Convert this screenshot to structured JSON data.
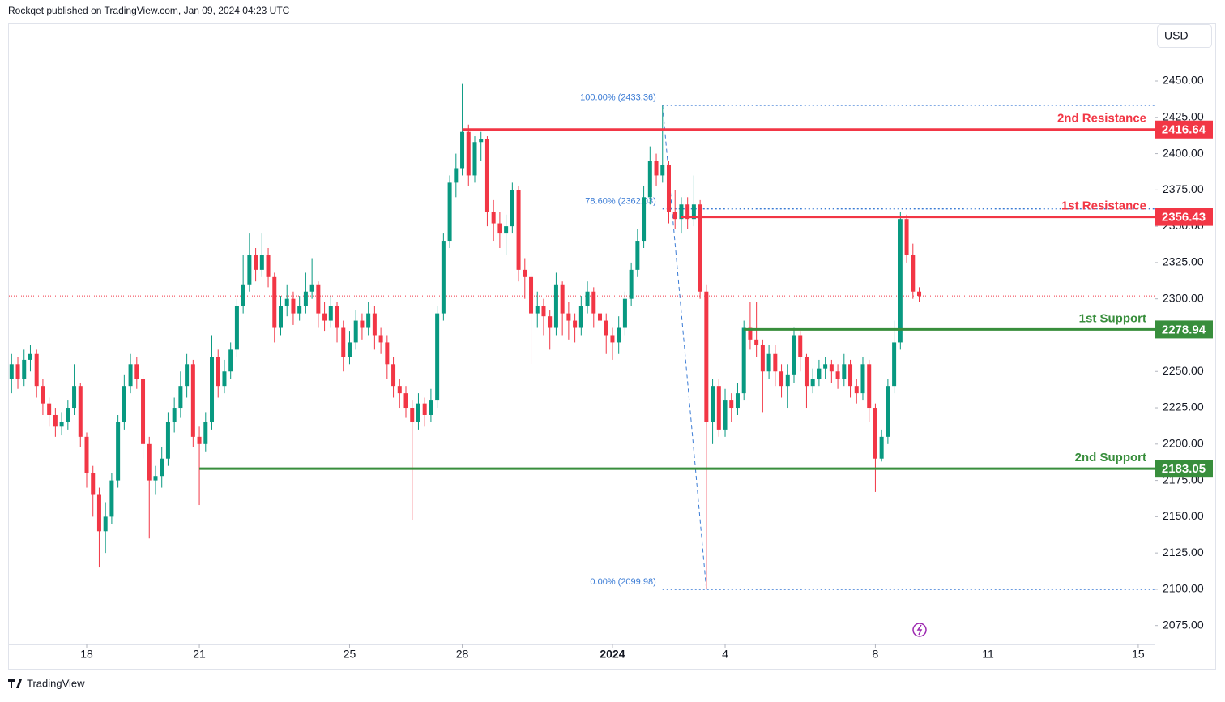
{
  "header": {
    "published": "Rockqet published on TradingView.com, Jan 09, 2024 04:23 UTC",
    "currency": "USD",
    "brand": "TradingView"
  },
  "chart_data": {
    "type": "candlestick",
    "up_color": "#089981",
    "down_color": "#f23645",
    "xlim": [
      -1.85,
      182.6
    ],
    "xticks": [
      {
        "value": 12,
        "label": "18"
      },
      {
        "value": 30,
        "label": "21"
      },
      {
        "value": 54,
        "label": "25"
      },
      {
        "value": 72,
        "label": "28"
      },
      {
        "value": 96,
        "label": "2024"
      },
      {
        "value": 114,
        "label": "4"
      },
      {
        "value": 138,
        "label": "8"
      },
      {
        "value": 156,
        "label": "11"
      },
      {
        "value": 180,
        "label": "15"
      }
    ],
    "ylim": [
      2062,
      2490.2
    ],
    "yticks": [
      {
        "value": 2075,
        "label": "2075.00"
      },
      {
        "value": 2100,
        "label": "2100.00"
      },
      {
        "value": 2125,
        "label": "2125.00"
      },
      {
        "value": 2150,
        "label": "2150.00"
      },
      {
        "value": 2175,
        "label": "2175.00"
      },
      {
        "value": 2200,
        "label": "2200.00"
      },
      {
        "value": 2225,
        "label": "2225.00"
      },
      {
        "value": 2250,
        "label": "2250.00"
      },
      {
        "value": 2275,
        "label": "2275.00"
      },
      {
        "value": 2300,
        "label": "2300.00"
      },
      {
        "value": 2325,
        "label": "2325.00"
      },
      {
        "value": 2350,
        "label": "2350.00"
      },
      {
        "value": 2375,
        "label": "2375.00"
      },
      {
        "value": 2400,
        "label": "2400.00"
      },
      {
        "value": 2425,
        "label": "2425.00"
      },
      {
        "value": 2450,
        "label": "2450.00"
      }
    ],
    "open": [
      2245,
      2255,
      2245,
      2258,
      2262,
      2240,
      2228,
      2220,
      2212,
      2215,
      2225,
      2240,
      2205,
      2180,
      2165,
      2140,
      2150,
      2175,
      2215,
      2240,
      2255,
      2245,
      2200,
      2175,
      2178,
      2190,
      2215,
      2225,
      2240,
      2255,
      2205,
      2200,
      2215,
      2260,
      2240,
      2250,
      2265,
      2295,
      2310,
      2330,
      2320,
      2330,
      2315,
      2280,
      2295,
      2300,
      2290,
      2295,
      2305,
      2310,
      2290,
      2285,
      2295,
      2280,
      2260,
      2270,
      2285,
      2280,
      2290,
      2275,
      2270,
      2255,
      2240,
      2235,
      2225,
      2215,
      2228,
      2220,
      2230,
      2290,
      2340,
      2380,
      2390,
      2415,
      2385,
      2408,
      2410,
      2360,
      2352,
      2345,
      2350,
      2375,
      2320,
      2315,
      2290,
      2295,
      2288,
      2280,
      2310,
      2290,
      2285,
      2280,
      2295,
      2305,
      2290,
      2285,
      2275,
      2270,
      2280,
      2300,
      2320,
      2340,
      2370,
      2395,
      2385,
      2392,
      2360,
      2355,
      2365,
      2355,
      2365,
      2305,
      2215,
      2240,
      2210,
      2230,
      2225,
      2235,
      2280,
      2272,
      2268,
      2250,
      2262,
      2250,
      2240,
      2248,
      2275,
      2260,
      2240,
      2245,
      2252,
      2255,
      2250,
      2245,
      2255,
      2240,
      2235,
      2255,
      2225,
      2190,
      2205,
      2240,
      2270,
      2355,
      2330,
      2305
    ],
    "high": [
      2262,
      2260,
      2265,
      2268,
      2265,
      2245,
      2232,
      2225,
      2222,
      2230,
      2255,
      2242,
      2208,
      2185,
      2170,
      2160,
      2180,
      2220,
      2248,
      2262,
      2260,
      2248,
      2205,
      2185,
      2198,
      2222,
      2232,
      2250,
      2262,
      2258,
      2212,
      2222,
      2275,
      2265,
      2258,
      2270,
      2300,
      2330,
      2345,
      2335,
      2345,
      2335,
      2318,
      2302,
      2310,
      2305,
      2302,
      2318,
      2328,
      2312,
      2298,
      2302,
      2298,
      2285,
      2278,
      2292,
      2290,
      2298,
      2295,
      2280,
      2275,
      2260,
      2245,
      2240,
      2230,
      2235,
      2232,
      2238,
      2295,
      2345,
      2385,
      2400,
      2448,
      2420,
      2412,
      2415,
      2412,
      2368,
      2360,
      2358,
      2380,
      2378,
      2328,
      2318,
      2305,
      2300,
      2292,
      2318,
      2312,
      2298,
      2290,
      2302,
      2312,
      2308,
      2298,
      2290,
      2280,
      2288,
      2305,
      2325,
      2348,
      2378,
      2405,
      2400,
      2433,
      2395,
      2375,
      2370,
      2370,
      2385,
      2368,
      2310,
      2245,
      2245,
      2238,
      2235,
      2242,
      2285,
      2298,
      2298,
      2272,
      2268,
      2268,
      2255,
      2255,
      2280,
      2278,
      2262,
      2252,
      2258,
      2260,
      2258,
      2255,
      2262,
      2258,
      2245,
      2260,
      2258,
      2228,
      2210,
      2245,
      2285,
      2360,
      2358,
      2338,
      2308
    ],
    "low": [
      2235,
      2238,
      2240,
      2250,
      2232,
      2220,
      2212,
      2205,
      2206,
      2210,
      2220,
      2198,
      2170,
      2150,
      2115,
      2125,
      2145,
      2170,
      2210,
      2235,
      2238,
      2190,
      2135,
      2165,
      2170,
      2185,
      2208,
      2218,
      2232,
      2198,
      2158,
      2195,
      2210,
      2232,
      2235,
      2245,
      2260,
      2290,
      2305,
      2312,
      2315,
      2308,
      2270,
      2275,
      2288,
      2282,
      2285,
      2290,
      2300,
      2280,
      2278,
      2280,
      2270,
      2250,
      2255,
      2265,
      2272,
      2275,
      2265,
      2262,
      2245,
      2232,
      2225,
      2218,
      2148,
      2210,
      2212,
      2215,
      2225,
      2285,
      2335,
      2370,
      2385,
      2378,
      2380,
      2395,
      2350,
      2340,
      2335,
      2330,
      2345,
      2312,
      2300,
      2255,
      2280,
      2275,
      2265,
      2275,
      2275,
      2272,
      2270,
      2275,
      2290,
      2280,
      2275,
      2262,
      2258,
      2262,
      2275,
      2295,
      2315,
      2335,
      2365,
      2378,
      2380,
      2352,
      2348,
      2345,
      2348,
      2350,
      2300,
      2100,
      2200,
      2205,
      2205,
      2215,
      2220,
      2230,
      2265,
      2260,
      2222,
      2245,
      2240,
      2232,
      2225,
      2242,
      2250,
      2225,
      2235,
      2240,
      2245,
      2242,
      2238,
      2240,
      2232,
      2228,
      2230,
      2215,
      2167,
      2188,
      2200,
      2235,
      2265,
      2325,
      2300,
      2298
    ],
    "close": [
      2255,
      2245,
      2258,
      2262,
      2240,
      2228,
      2220,
      2212,
      2215,
      2225,
      2240,
      2205,
      2180,
      2165,
      2140,
      2150,
      2175,
      2215,
      2240,
      2255,
      2245,
      2200,
      2175,
      2178,
      2190,
      2215,
      2225,
      2240,
      2255,
      2205,
      2200,
      2215,
      2260,
      2240,
      2250,
      2265,
      2295,
      2310,
      2330,
      2320,
      2330,
      2315,
      2280,
      2295,
      2300,
      2290,
      2295,
      2305,
      2310,
      2290,
      2285,
      2295,
      2280,
      2260,
      2270,
      2285,
      2280,
      2290,
      2275,
      2270,
      2255,
      2240,
      2235,
      2225,
      2215,
      2228,
      2220,
      2230,
      2290,
      2340,
      2380,
      2390,
      2415,
      2385,
      2408,
      2410,
      2360,
      2352,
      2345,
      2350,
      2375,
      2320,
      2315,
      2290,
      2295,
      2288,
      2280,
      2310,
      2290,
      2285,
      2280,
      2295,
      2305,
      2290,
      2285,
      2275,
      2270,
      2280,
      2300,
      2320,
      2340,
      2370,
      2395,
      2385,
      2392,
      2360,
      2355,
      2365,
      2355,
      2365,
      2305,
      2215,
      2240,
      2210,
      2230,
      2225,
      2235,
      2280,
      2272,
      2268,
      2250,
      2262,
      2250,
      2240,
      2248,
      2275,
      2260,
      2240,
      2245,
      2252,
      2255,
      2250,
      2245,
      2255,
      2240,
      2235,
      2255,
      2225,
      2190,
      2205,
      2240,
      2270,
      2355,
      2330,
      2305,
      2302
    ],
    "levels": [
      {
        "name": "2nd Resistance",
        "value": 2416.64,
        "from": 72,
        "color": "#f23645"
      },
      {
        "name": "1st Resistance",
        "value": 2356.43,
        "from": 107,
        "color": "#f23645"
      },
      {
        "name": "1st Support",
        "value": 2278.94,
        "from": 117,
        "color": "#388e3c"
      },
      {
        "name": "2nd Support",
        "value": 2183.05,
        "from": 30,
        "color": "#388e3c"
      }
    ],
    "fib": {
      "from": 104,
      "to": 111,
      "color": "#3a7bd5",
      "levels": [
        {
          "label": "100.00% (2433.36)",
          "value": 2433.36
        },
        {
          "label": "78.60% (2362.03)",
          "value": 2362.03
        },
        {
          "label": "0.00% (2099.98)",
          "value": 2099.98
        }
      ]
    }
  }
}
